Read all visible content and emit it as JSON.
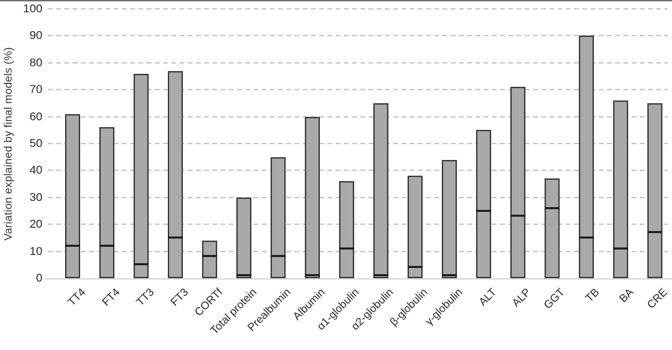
{
  "figure": {
    "background": "#ffffff",
    "top_rule_color": "#6e6e6e"
  },
  "chart_data": {
    "type": "bar",
    "title": "",
    "xlabel": "",
    "ylabel": "Variation explained by final models (%)",
    "ylim": [
      0,
      100
    ],
    "ytick_interval": 10,
    "ytick_labels": [
      "0",
      "10",
      "20",
      "30",
      "40",
      "50",
      "60",
      "70",
      "80",
      "90",
      "100"
    ],
    "grid": "horizontal-dashed",
    "gridline_color": "#c7c7c7",
    "legend_position": "none",
    "bar_fill_color": "#a9a9a9",
    "bar_border_color": "#3d3d3d",
    "marker_line_color": "#1f1f1f",
    "categories": [
      "TT4",
      "FT4",
      "TT3",
      "FT3",
      "CORTf",
      "Total protein",
      "Prealbumin",
      "Albumin",
      "α1-globulin",
      "α2-globulin",
      "β-globulin",
      "γ-globulin",
      "ALT",
      "ALP",
      "GGT",
      "TB",
      "BA",
      "CRE"
    ],
    "series": [
      {
        "name": "bar_top",
        "values": [
          61,
          56,
          76,
          77,
          14,
          30,
          45,
          60,
          36,
          65,
          38,
          44,
          55,
          71,
          37,
          90,
          66,
          65
        ]
      },
      {
        "name": "marker_line",
        "values": [
          12,
          12,
          5,
          15,
          8,
          1,
          8,
          1,
          11,
          1,
          4,
          1,
          25,
          23,
          26,
          15,
          11,
          17
        ]
      }
    ]
  }
}
